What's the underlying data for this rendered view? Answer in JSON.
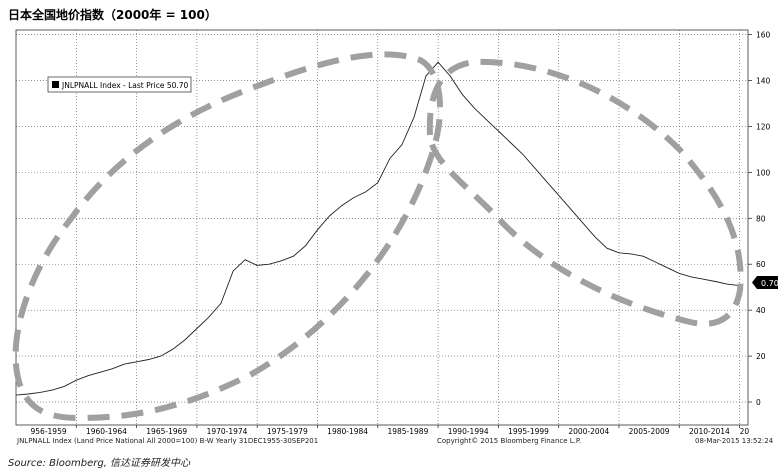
{
  "title": "日本全国地价指数（2000年 = 100）",
  "source": "Source: Bloomberg, 信达证券研发中心",
  "footer": {
    "left": "JNLPNALL Index (Land Price National All 2000=100) B-W  Yearly 31DEC1955-30SEP201",
    "center": "Copyright© 2015 Bloomberg Finance L.P.",
    "right": "08-Mar-2015 13:52:24"
  },
  "legend": {
    "label": "JNLPNALL Index - Last Price 50.70"
  },
  "last_price_tag": "0.70",
  "chart_data": {
    "type": "line",
    "ylim": [
      -10,
      162
    ],
    "yticks": [
      0,
      20,
      40,
      60,
      80,
      100,
      120,
      140,
      160
    ],
    "xlim": [
      1955,
      2015.7
    ],
    "grid": true,
    "xtick_labels": [
      {
        "year": 1957.7,
        "label": "956-1959"
      },
      {
        "year": 1962.5,
        "label": "1960-1964"
      },
      {
        "year": 1967.5,
        "label": "1965-1969"
      },
      {
        "year": 1972.5,
        "label": "1970-1974"
      },
      {
        "year": 1977.5,
        "label": "1975-1979"
      },
      {
        "year": 1982.5,
        "label": "1980-1984"
      },
      {
        "year": 1987.5,
        "label": "1985-1989"
      },
      {
        "year": 1992.5,
        "label": "1990-1994"
      },
      {
        "year": 1997.5,
        "label": "1995-1999"
      },
      {
        "year": 2002.5,
        "label": "2000-2004"
      },
      {
        "year": 2007.5,
        "label": "2005-2009"
      },
      {
        "year": 2012.5,
        "label": "2010-2014"
      },
      {
        "year": 2015.4,
        "label": "20"
      }
    ],
    "vgrid_years": [
      1960,
      1965,
      1970,
      1975,
      1980,
      1985,
      1990,
      1995,
      2000,
      2005,
      2010,
      2015
    ],
    "series": [
      {
        "name": "JNLPNALL Index - Last Price",
        "x": [
          1955,
          1956,
          1957,
          1958,
          1959,
          1960,
          1961,
          1962,
          1963,
          1964,
          1965,
          1966,
          1967,
          1968,
          1969,
          1970,
          1971,
          1972,
          1973,
          1974,
          1975,
          1976,
          1977,
          1978,
          1979,
          1980,
          1981,
          1982,
          1983,
          1984,
          1985,
          1986,
          1987,
          1988,
          1989,
          1990,
          1991,
          1992,
          1993,
          1994,
          1995,
          1996,
          1997,
          1998,
          1999,
          2000,
          2001,
          2002,
          2003,
          2004,
          2005,
          2006,
          2007,
          2008,
          2009,
          2010,
          2011,
          2012,
          2013,
          2014,
          2015
        ],
        "values": [
          3,
          3.5,
          4.2,
          5.2,
          6.8,
          9.5,
          11.5,
          13,
          14.5,
          16.5,
          17.5,
          18.5,
          20,
          23,
          27,
          32,
          37,
          43,
          57,
          62,
          59.5,
          60,
          61.5,
          63.5,
          68,
          75,
          81,
          85.5,
          89,
          91.5,
          95.5,
          106,
          112,
          124,
          142,
          148,
          142,
          134,
          128,
          123,
          118,
          113,
          108,
          102,
          96,
          90,
          84,
          78,
          72,
          67,
          65,
          64.5,
          63.5,
          61,
          58.5,
          56,
          54.5,
          53.5,
          52.5,
          51.3,
          50.7
        ]
      }
    ],
    "last_price": 50.7
  },
  "colors": {
    "line": "#222222",
    "annotation": "#a0a0a0",
    "grid": "#555555",
    "tag_bg": "#000000"
  }
}
